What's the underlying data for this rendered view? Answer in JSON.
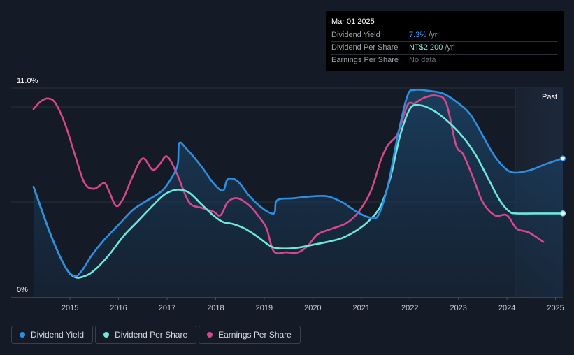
{
  "chart_data": {
    "type": "line",
    "y_axis": {
      "top_label": "11.0%",
      "bottom_label": "0%",
      "ylim": [
        0,
        11.0
      ]
    },
    "x_axis": {
      "ticks": [
        "2015",
        "2016",
        "2017",
        "2018",
        "2019",
        "2020",
        "2021",
        "2022",
        "2023",
        "2024",
        "2025"
      ],
      "xlim": [
        2014.25,
        2025.15
      ]
    },
    "past_label": "Past",
    "past_region_start": 2024.17,
    "series": [
      {
        "name": "Dividend Yield",
        "color": "#2e8fe0",
        "points": [
          [
            2014.25,
            5.8
          ],
          [
            2014.6,
            3.3
          ],
          [
            2014.9,
            1.6
          ],
          [
            2015.1,
            1.1
          ],
          [
            2015.25,
            1.4
          ],
          [
            2015.45,
            2.2
          ],
          [
            2015.7,
            3.0
          ],
          [
            2016.0,
            3.8
          ],
          [
            2016.3,
            4.6
          ],
          [
            2016.6,
            5.1
          ],
          [
            2016.9,
            5.6
          ],
          [
            2017.1,
            6.3
          ],
          [
            2017.22,
            7.0
          ],
          [
            2017.25,
            8.1
          ],
          [
            2017.4,
            7.8
          ],
          [
            2017.7,
            6.9
          ],
          [
            2017.95,
            6.0
          ],
          [
            2018.15,
            5.6
          ],
          [
            2018.25,
            6.2
          ],
          [
            2018.45,
            6.1
          ],
          [
            2018.7,
            5.3
          ],
          [
            2018.95,
            4.7
          ],
          [
            2019.15,
            4.4
          ],
          [
            2019.22,
            4.5
          ],
          [
            2019.27,
            5.1
          ],
          [
            2019.6,
            5.2
          ],
          [
            2020.0,
            5.3
          ],
          [
            2020.3,
            5.3
          ],
          [
            2020.6,
            5.0
          ],
          [
            2020.9,
            4.5
          ],
          [
            2021.15,
            4.2
          ],
          [
            2021.35,
            4.3
          ],
          [
            2021.55,
            5.9
          ],
          [
            2021.75,
            8.5
          ],
          [
            2021.95,
            10.6
          ],
          [
            2022.1,
            10.9
          ],
          [
            2022.4,
            10.85
          ],
          [
            2022.7,
            10.7
          ],
          [
            2023.0,
            10.2
          ],
          [
            2023.25,
            9.6
          ],
          [
            2023.5,
            8.5
          ],
          [
            2023.75,
            7.4
          ],
          [
            2024.0,
            6.7
          ],
          [
            2024.2,
            6.55
          ],
          [
            2024.5,
            6.7
          ],
          [
            2024.8,
            7.0
          ],
          [
            2025.15,
            7.3
          ]
        ]
      },
      {
        "name": "Dividend Per Share",
        "color": "#6ee8dc",
        "points": [
          [
            2014.25,
            5.8
          ],
          [
            2014.6,
            3.3
          ],
          [
            2014.9,
            1.6
          ],
          [
            2015.1,
            1.05
          ],
          [
            2015.3,
            1.1
          ],
          [
            2015.5,
            1.4
          ],
          [
            2015.8,
            2.2
          ],
          [
            2016.1,
            3.2
          ],
          [
            2016.4,
            4.0
          ],
          [
            2016.7,
            4.8
          ],
          [
            2016.95,
            5.4
          ],
          [
            2017.2,
            5.65
          ],
          [
            2017.45,
            5.5
          ],
          [
            2017.7,
            4.9
          ],
          [
            2017.95,
            4.3
          ],
          [
            2018.15,
            3.95
          ],
          [
            2018.35,
            3.85
          ],
          [
            2018.6,
            3.6
          ],
          [
            2018.85,
            3.2
          ],
          [
            2019.15,
            2.65
          ],
          [
            2019.4,
            2.55
          ],
          [
            2019.7,
            2.6
          ],
          [
            2020.0,
            2.75
          ],
          [
            2020.3,
            2.9
          ],
          [
            2020.6,
            3.1
          ],
          [
            2020.9,
            3.5
          ],
          [
            2021.15,
            4.0
          ],
          [
            2021.4,
            4.8
          ],
          [
            2021.6,
            6.3
          ],
          [
            2021.8,
            8.5
          ],
          [
            2022.0,
            9.9
          ],
          [
            2022.2,
            10.1
          ],
          [
            2022.5,
            9.8
          ],
          [
            2022.8,
            9.2
          ],
          [
            2023.1,
            8.4
          ],
          [
            2023.35,
            7.5
          ],
          [
            2023.6,
            6.3
          ],
          [
            2023.85,
            5.1
          ],
          [
            2024.05,
            4.5
          ],
          [
            2024.2,
            4.4
          ],
          [
            2024.6,
            4.4
          ],
          [
            2025.15,
            4.4
          ]
        ]
      },
      {
        "name": "Earnings Per Share",
        "color": "#d6488c",
        "points": [
          [
            2014.25,
            9.9
          ],
          [
            2014.4,
            10.3
          ],
          [
            2014.55,
            10.45
          ],
          [
            2014.7,
            10.2
          ],
          [
            2014.9,
            9.1
          ],
          [
            2015.1,
            7.5
          ],
          [
            2015.3,
            6.0
          ],
          [
            2015.5,
            5.7
          ],
          [
            2015.7,
            6.0
          ],
          [
            2015.8,
            5.6
          ],
          [
            2015.95,
            4.8
          ],
          [
            2016.1,
            5.2
          ],
          [
            2016.3,
            6.4
          ],
          [
            2016.5,
            7.3
          ],
          [
            2016.7,
            6.7
          ],
          [
            2016.85,
            7.0
          ],
          [
            2017.0,
            7.4
          ],
          [
            2017.2,
            6.5
          ],
          [
            2017.45,
            5.0
          ],
          [
            2017.7,
            4.7
          ],
          [
            2017.95,
            4.5
          ],
          [
            2018.1,
            4.3
          ],
          [
            2018.25,
            5.0
          ],
          [
            2018.45,
            5.2
          ],
          [
            2018.7,
            4.8
          ],
          [
            2018.9,
            4.2
          ],
          [
            2019.05,
            3.6
          ],
          [
            2019.2,
            2.4
          ],
          [
            2019.45,
            2.35
          ],
          [
            2019.7,
            2.35
          ],
          [
            2019.9,
            2.7
          ],
          [
            2020.1,
            3.3
          ],
          [
            2020.4,
            3.6
          ],
          [
            2020.7,
            3.9
          ],
          [
            2020.95,
            4.5
          ],
          [
            2021.2,
            5.6
          ],
          [
            2021.4,
            7.2
          ],
          [
            2021.55,
            8.0
          ],
          [
            2021.75,
            8.6
          ],
          [
            2021.95,
            10.1
          ],
          [
            2022.1,
            10.2
          ],
          [
            2022.3,
            10.5
          ],
          [
            2022.55,
            10.6
          ],
          [
            2022.75,
            10.2
          ],
          [
            2022.95,
            8.0
          ],
          [
            2023.1,
            7.5
          ],
          [
            2023.3,
            6.3
          ],
          [
            2023.5,
            5.0
          ],
          [
            2023.75,
            4.3
          ],
          [
            2024.0,
            4.3
          ],
          [
            2024.2,
            3.6
          ],
          [
            2024.45,
            3.4
          ],
          [
            2024.75,
            2.9
          ]
        ]
      }
    ]
  },
  "tooltip": {
    "date": "Mar 01 2025",
    "rows": [
      {
        "label": "Dividend Yield",
        "value": "7.3%",
        "unit": " /yr"
      },
      {
        "label": "Dividend Per Share",
        "value": "NT$2.200",
        "unit": " /yr"
      },
      {
        "label": "Earnings Per Share",
        "value": "No data",
        "unit": ""
      }
    ]
  },
  "legend": [
    {
      "label": "Dividend Yield",
      "color": "#2e8fe0"
    },
    {
      "label": "Dividend Per Share",
      "color": "#6ee8dc"
    },
    {
      "label": "Earnings Per Share",
      "color": "#d6488c"
    }
  ]
}
